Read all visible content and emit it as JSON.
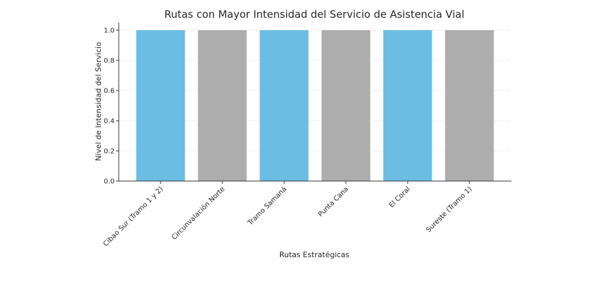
{
  "chart_data": {
    "type": "bar",
    "title": "Rutas con Mayor Intensidad del Servicio de Asistencia Vial",
    "xlabel": "Rutas Estratégicas",
    "ylabel": "Nivel de Intensidad del Servicio",
    "categories": [
      "Cibao Sur (Tramo 1 y 2)",
      "Circunvalación Norte",
      "Tramo Samaná",
      "Punta Cana",
      "El Coral",
      "Sureste (Tramo 1)"
    ],
    "values": [
      1.0,
      1.0,
      1.0,
      1.0,
      1.0,
      1.0
    ],
    "bar_colors": [
      "#6bbde3",
      "#adadad",
      "#6bbde3",
      "#adadad",
      "#6bbde3",
      "#adadad"
    ],
    "ylim": [
      0,
      1.05
    ],
    "yticks": [
      0.0,
      0.2,
      0.4,
      0.6,
      0.8,
      1.0
    ],
    "ytick_labels": [
      "0.0",
      "0.2",
      "0.4",
      "0.6",
      "0.8",
      "1.0"
    ],
    "grid": true
  }
}
